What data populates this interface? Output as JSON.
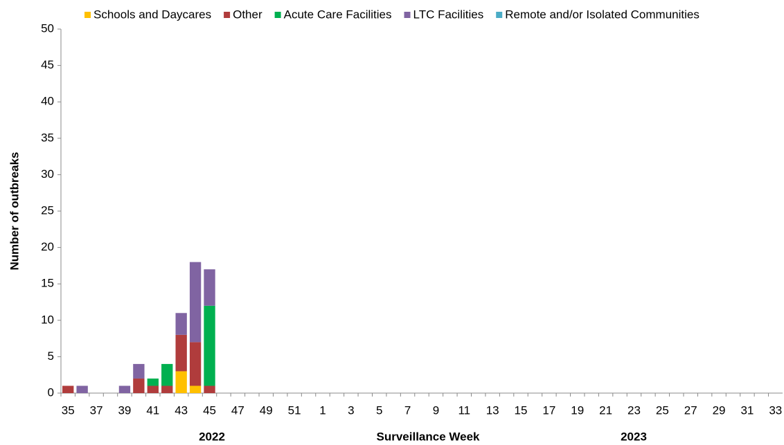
{
  "chart_data": {
    "type": "stacked_bar",
    "y_label": "Number of outbreaks",
    "x_label": "Surveillance  Week",
    "annotations": [
      "2022",
      "2023"
    ],
    "categories": [
      "35",
      null,
      "37",
      null,
      "39",
      null,
      "41",
      null,
      "43",
      null,
      "45",
      null,
      "47",
      null,
      "49",
      null,
      "51",
      null,
      "1",
      null,
      "3",
      null,
      "5",
      null,
      "7",
      null,
      "9",
      null,
      "11",
      null,
      "13",
      null,
      "15",
      null,
      "17",
      null,
      "19",
      null,
      "21",
      null,
      "23",
      null,
      "25",
      null,
      "27",
      null,
      "29",
      null,
      "31",
      null,
      "33"
    ],
    "series": [
      {
        "name": "Schools and Daycares",
        "color": "#ffc000",
        "values": [
          0,
          0,
          0,
          0,
          0,
          0,
          0,
          0,
          3,
          1,
          0,
          0,
          0,
          0,
          0,
          0,
          0,
          0,
          0,
          0,
          0,
          0,
          0,
          0,
          0,
          0,
          0,
          0,
          0,
          0,
          0,
          0,
          0,
          0,
          0,
          0,
          0,
          0,
          0,
          0,
          0,
          0,
          0,
          0,
          0,
          0,
          0,
          0,
          0,
          0,
          0
        ]
      },
      {
        "name": "Other",
        "color": "#b03c3c",
        "values": [
          1,
          0,
          0,
          0,
          0,
          2,
          1,
          1,
          5,
          6,
          1,
          0,
          0,
          0,
          0,
          0,
          0,
          0,
          0,
          0,
          0,
          0,
          0,
          0,
          0,
          0,
          0,
          0,
          0,
          0,
          0,
          0,
          0,
          0,
          0,
          0,
          0,
          0,
          0,
          0,
          0,
          0,
          0,
          0,
          0,
          0,
          0,
          0,
          0,
          0,
          0
        ]
      },
      {
        "name": "Acute Care Facilities",
        "color": "#00b050",
        "values": [
          0,
          0,
          0,
          0,
          0,
          0,
          1,
          3,
          0,
          0,
          11,
          0,
          0,
          0,
          0,
          0,
          0,
          0,
          0,
          0,
          0,
          0,
          0,
          0,
          0,
          0,
          0,
          0,
          0,
          0,
          0,
          0,
          0,
          0,
          0,
          0,
          0,
          0,
          0,
          0,
          0,
          0,
          0,
          0,
          0,
          0,
          0,
          0,
          0,
          0,
          0
        ]
      },
      {
        "name": "LTC Facilities",
        "color": "#8064a2",
        "values": [
          0,
          1,
          0,
          0,
          1,
          2,
          0,
          0,
          3,
          11,
          5,
          0,
          0,
          0,
          0,
          0,
          0,
          0,
          0,
          0,
          0,
          0,
          0,
          0,
          0,
          0,
          0,
          0,
          0,
          0,
          0,
          0,
          0,
          0,
          0,
          0,
          0,
          0,
          0,
          0,
          0,
          0,
          0,
          0,
          0,
          0,
          0,
          0,
          0,
          0,
          0
        ]
      },
      {
        "name": "Remote and/or Isolated Communities",
        "color": "#4bacc6",
        "values": [
          0,
          0,
          0,
          0,
          0,
          0,
          0,
          0,
          0,
          0,
          0,
          0,
          0,
          0,
          0,
          0,
          0,
          0,
          0,
          0,
          0,
          0,
          0,
          0,
          0,
          0,
          0,
          0,
          0,
          0,
          0,
          0,
          0,
          0,
          0,
          0,
          0,
          0,
          0,
          0,
          0,
          0,
          0,
          0,
          0,
          0,
          0,
          0,
          0,
          0,
          0
        ]
      }
    ],
    "ylim": [
      0,
      50
    ],
    "yticks": [
      0,
      5,
      10,
      15,
      20,
      25,
      30,
      35,
      40,
      45,
      50
    ],
    "grid": false,
    "legend": "top"
  }
}
